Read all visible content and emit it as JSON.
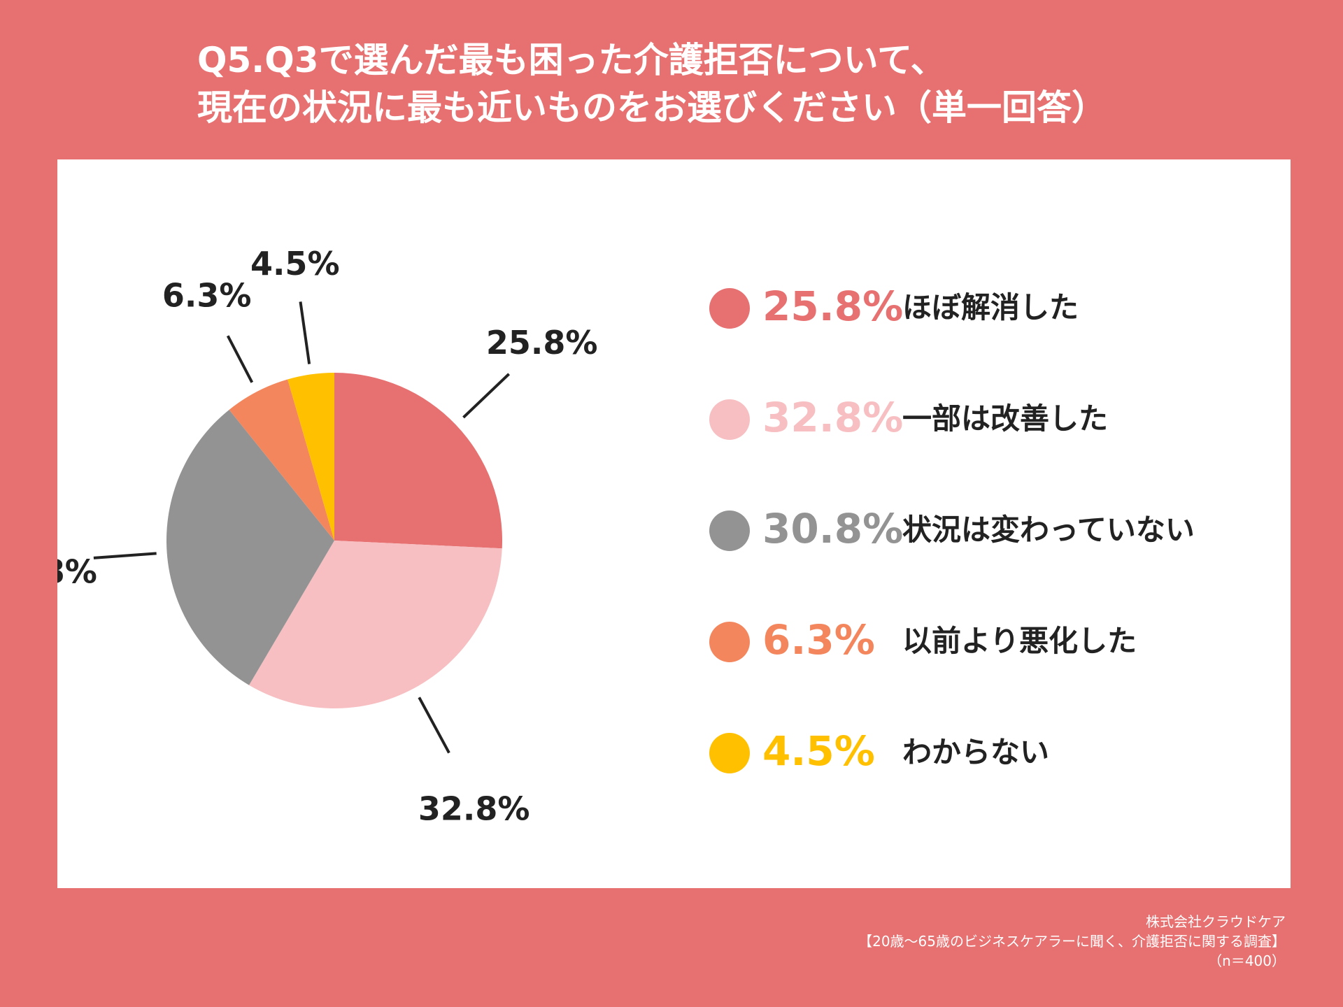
{
  "title_lines": [
    "Q5.Q3で選んだ最も困った介護拒否について、",
    "現在の状況に最も近いものをお選びください（単一回答）"
  ],
  "chart_data": {
    "type": "pie",
    "categories": [
      "ほぼ解消した",
      "一部は改善した",
      "状況は変わっていない",
      "以前より悪化した",
      "わからない"
    ],
    "values": [
      25.8,
      32.8,
      30.8,
      6.3,
      4.5
    ],
    "labels": [
      "25.8%",
      "32.8%",
      "30.8%",
      "6.3%",
      "4.5%"
    ],
    "colors": [
      "#e77071",
      "#f7bfc1",
      "#939393",
      "#f4865d",
      "#ffc000"
    ],
    "legend_position": "right",
    "start": "12 o'clock",
    "direction": "clockwise"
  },
  "source": {
    "company": "株式会社クラウドケア",
    "survey": "【20歳～65歳のビジネスケアラーに聞く、介護拒否に関する調査】",
    "n": "（n＝400）"
  }
}
